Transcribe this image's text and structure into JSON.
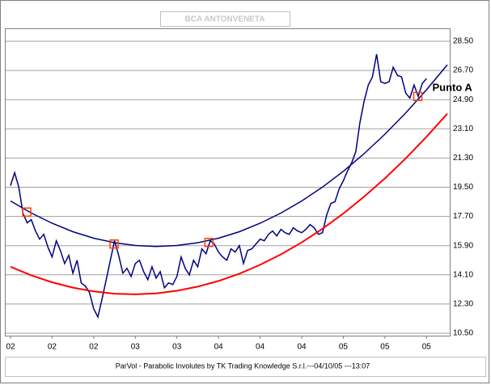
{
  "chart_data": {
    "type": "line",
    "title": "BCA ANTONVENETA",
    "footer": "ParVol - Parabolic Involutes by TK Trading Knowledge S.r.l.---04/10/05 ---13:07",
    "annotation": "Punto A",
    "xlim": [
      0,
      105
    ],
    "xticks": [
      {
        "value": 0,
        "label": "02"
      },
      {
        "value": 10,
        "label": "02"
      },
      {
        "value": 20,
        "label": "02"
      },
      {
        "value": 30,
        "label": "03"
      },
      {
        "value": 40,
        "label": "03"
      },
      {
        "value": 50,
        "label": "04"
      },
      {
        "value": 60,
        "label": "04"
      },
      {
        "value": 70,
        "label": "04"
      },
      {
        "value": 80,
        "label": "05"
      },
      {
        "value": 90,
        "label": "05"
      },
      {
        "value": 100,
        "label": "05"
      }
    ],
    "ylim": [
      10.5,
      28.5
    ],
    "yticks": [
      {
        "value": 10.5,
        "label": "10.50"
      },
      {
        "value": 12.3,
        "label": "12.30"
      },
      {
        "value": 14.1,
        "label": "14.10"
      },
      {
        "value": 15.9,
        "label": "15.90"
      },
      {
        "value": 17.7,
        "label": "17.70"
      },
      {
        "value": 19.5,
        "label": "19.50"
      },
      {
        "value": 21.3,
        "label": "21.30"
      },
      {
        "value": 23.1,
        "label": "23.10"
      },
      {
        "value": 24.9,
        "label": "24.90"
      },
      {
        "value": 26.7,
        "label": "26.70"
      },
      {
        "value": 28.5,
        "label": "28.50"
      }
    ],
    "grid": true,
    "series": [
      {
        "color": "#000080",
        "x": [
          0,
          1,
          2,
          3,
          4,
          5,
          6,
          7,
          8,
          9,
          10,
          11,
          12,
          13,
          14,
          15,
          16,
          17,
          18,
          19,
          20,
          21,
          22,
          23,
          24,
          25,
          26,
          27,
          28,
          29,
          30,
          31,
          32,
          33,
          34,
          35,
          36,
          37,
          38,
          39,
          40,
          41,
          42,
          43,
          44,
          45,
          46,
          47,
          48,
          49,
          50,
          51,
          52,
          53,
          54,
          55,
          56,
          57,
          58,
          59,
          60,
          61,
          62,
          63,
          64,
          65,
          66,
          67,
          68,
          69,
          70,
          71,
          72,
          73,
          74,
          75,
          76,
          77,
          78,
          79,
          80,
          81,
          82,
          83,
          84,
          85,
          86,
          87,
          88,
          89,
          90,
          91,
          92,
          93,
          94,
          95,
          96,
          97,
          98,
          99,
          100
        ],
        "values": [
          19.6,
          20.4,
          19.5,
          17.9,
          17.3,
          17.5,
          16.8,
          16.3,
          16.6,
          15.8,
          15.2,
          16.2,
          15.6,
          14.8,
          15.3,
          14.2,
          15.0,
          13.6,
          13.4,
          13.0,
          12.0,
          11.5,
          12.6,
          13.8,
          15.0,
          16.2,
          15.3,
          14.2,
          14.5,
          14.0,
          14.8,
          15.0,
          14.3,
          13.8,
          14.6,
          13.9,
          14.3,
          13.3,
          13.6,
          13.5,
          14.0,
          15.2,
          14.5,
          14.1,
          15.0,
          14.6,
          15.7,
          15.4,
          16.2,
          16.0,
          15.5,
          15.2,
          15.0,
          15.7,
          15.5,
          15.9,
          14.8,
          15.6,
          15.7,
          16.0,
          16.3,
          16.2,
          16.6,
          16.8,
          16.5,
          16.9,
          16.7,
          16.6,
          17.0,
          16.8,
          16.7,
          16.9,
          17.2,
          17.0,
          16.6,
          16.7,
          17.8,
          18.5,
          18.6,
          19.4,
          19.9,
          20.5,
          21.0,
          21.7,
          23.5,
          24.8,
          25.8,
          26.3,
          27.7,
          26.0,
          25.9,
          26.0,
          26.9,
          26.4,
          26.3,
          25.3,
          25.0,
          25.8,
          25.1,
          25.9,
          26.2
        ]
      },
      {
        "color": "#000080",
        "x": [
          0,
          5,
          10,
          15,
          20,
          25,
          30,
          35,
          40,
          45,
          50,
          55,
          60,
          65,
          70,
          75,
          80,
          85,
          90,
          95,
          100,
          105
        ],
        "values": [
          18.65,
          17.91,
          17.28,
          16.76,
          16.36,
          16.08,
          15.91,
          15.85,
          15.91,
          16.08,
          16.36,
          16.76,
          17.28,
          17.91,
          18.65,
          19.51,
          20.48,
          21.57,
          22.77,
          24.08,
          25.51,
          27.05
        ]
      },
      {
        "color": "#ff0000",
        "x": [
          0,
          5,
          10,
          15,
          20,
          25,
          30,
          35,
          40,
          45,
          50,
          55,
          60,
          65,
          70,
          75,
          80,
          85,
          90,
          95,
          100,
          105
        ],
        "values": [
          14.6,
          14.07,
          13.64,
          13.31,
          13.08,
          12.94,
          12.9,
          12.96,
          13.12,
          13.37,
          13.72,
          14.17,
          14.72,
          15.36,
          16.1,
          16.94,
          17.88,
          18.92,
          20.05,
          21.28,
          22.61,
          24.03
        ]
      }
    ],
    "highlights": {
      "color": "#ff4000",
      "x": [
        3.9,
        24.9,
        47.7,
        97.9
      ],
      "values": [
        17.97,
        16.0,
        16.1,
        25.1
      ]
    }
  }
}
